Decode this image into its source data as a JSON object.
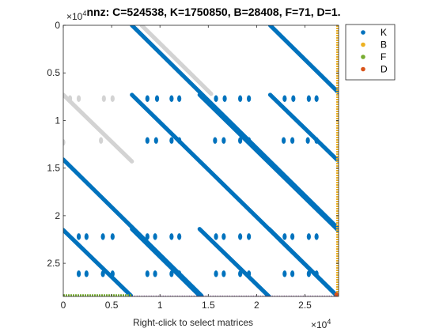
{
  "chart_data": {
    "type": "scatter",
    "title": "nnz: C=524538, K=1750850, B=28408, F=71, D=1.",
    "xlabel": "Right-click to select matrices",
    "ylabel": "",
    "xlim": [
      0,
      28479
    ],
    "ylim": [
      28479,
      0
    ],
    "y_reversed": true,
    "x_ticks": [
      0,
      5000,
      10000,
      15000,
      20000,
      25000
    ],
    "x_tick_labels": [
      "0",
      "0.5",
      "1",
      "1.5",
      "2",
      "2.5"
    ],
    "y_ticks": [
      0,
      5000,
      10000,
      15000,
      20000,
      25000
    ],
    "y_tick_labels": [
      "0",
      "0.5",
      "1",
      "1.5",
      "2",
      "2.5"
    ],
    "x_exponent_label": "×10",
    "x_exponent_power": "4",
    "y_exponent_label": "×10",
    "y_exponent_power": "4",
    "grid": false,
    "legend_position": "top-right-outside",
    "legend": [
      "K",
      "B",
      "F",
      "D"
    ],
    "series": [
      {
        "name": "C",
        "color": "#d3d3d3",
        "diagonals": [
          {
            "x0": 0,
            "y0": 7300,
            "x1": 7100,
            "y1": 14300
          },
          {
            "x0": 8100,
            "y0": 0,
            "x1": 15300,
            "y1": 7200
          }
        ],
        "dots": [
          [
            700,
            7700
          ],
          [
            1600,
            7700
          ],
          [
            4200,
            7700
          ],
          [
            5100,
            7700
          ],
          [
            0,
            12300
          ],
          [
            3900,
            12100
          ]
        ]
      },
      {
        "name": "K",
        "color": "#0072bd",
        "diagonals": [
          {
            "x0": 0,
            "y0": 14100,
            "x1": 14300,
            "y1": 28400
          },
          {
            "x0": 0,
            "y0": 21500,
            "x1": 7000,
            "y1": 28400
          },
          {
            "x0": 7100,
            "y0": 0,
            "x1": 28400,
            "y1": 21300
          },
          {
            "x0": 7100,
            "y0": 7300,
            "x1": 28400,
            "y1": 28500
          },
          {
            "x0": 7100,
            "y0": 21400,
            "x1": 14200,
            "y1": 28500
          },
          {
            "x0": 14100,
            "y0": 7300,
            "x1": 28400,
            "y1": 21500
          },
          {
            "x0": 14100,
            "y0": 21400,
            "x1": 21300,
            "y1": 28500
          },
          {
            "x0": 21400,
            "y0": 0,
            "x1": 28400,
            "y1": 7000
          },
          {
            "x0": 21400,
            "y0": 7300,
            "x1": 28400,
            "y1": 14200
          },
          {
            "x0": 21300,
            "y0": 21400,
            "x1": 28300,
            "y1": 28400
          }
        ],
        "dots": [
          [
            8700,
            7700
          ],
          [
            9700,
            7700
          ],
          [
            11200,
            7700
          ],
          [
            12000,
            7700
          ],
          [
            15800,
            7700
          ],
          [
            16700,
            7700
          ],
          [
            18300,
            7700
          ],
          [
            19200,
            7700
          ],
          [
            22900,
            7700
          ],
          [
            23800,
            7700
          ],
          [
            25400,
            7700
          ],
          [
            26200,
            7700
          ],
          [
            8700,
            12100
          ],
          [
            9600,
            12100
          ],
          [
            11200,
            12100
          ],
          [
            12000,
            12100
          ],
          [
            15700,
            12100
          ],
          [
            16600,
            12100
          ],
          [
            18300,
            12100
          ],
          [
            19200,
            12100
          ],
          [
            22800,
            12100
          ],
          [
            23700,
            12100
          ],
          [
            25300,
            12100
          ],
          [
            26200,
            12100
          ],
          [
            1600,
            22200
          ],
          [
            2400,
            22200
          ],
          [
            4100,
            22200
          ],
          [
            5100,
            22200
          ],
          [
            8700,
            22200
          ],
          [
            9500,
            22200
          ],
          [
            11200,
            22200
          ],
          [
            12000,
            22200
          ],
          [
            15800,
            22200
          ],
          [
            16600,
            22200
          ],
          [
            18300,
            22200
          ],
          [
            19200,
            22200
          ],
          [
            22900,
            22200
          ],
          [
            23700,
            22200
          ],
          [
            25400,
            22200
          ],
          [
            26200,
            22200
          ],
          [
            1600,
            26100
          ],
          [
            2400,
            26100
          ],
          [
            4100,
            26100
          ],
          [
            5100,
            26100
          ],
          [
            8700,
            26100
          ],
          [
            9500,
            26100
          ],
          [
            11200,
            26100
          ],
          [
            12000,
            26100
          ],
          [
            15800,
            26100
          ],
          [
            16600,
            26100
          ],
          [
            18300,
            26100
          ],
          [
            19200,
            26100
          ],
          [
            22900,
            26100
          ],
          [
            23700,
            26100
          ],
          [
            25400,
            26100
          ],
          [
            26200,
            26100
          ]
        ]
      },
      {
        "name": "B",
        "color": "#edb120",
        "vertical": {
          "x": 28400,
          "y0": 0,
          "y1": 28479
        }
      },
      {
        "name": "F",
        "color": "#77ac30",
        "horizontal": {
          "y": 28400,
          "x0": 0,
          "x1": 7100
        }
      },
      {
        "name": "D",
        "color": "#d95319",
        "points": [
          [
            28420,
            28420
          ]
        ]
      }
    ]
  }
}
